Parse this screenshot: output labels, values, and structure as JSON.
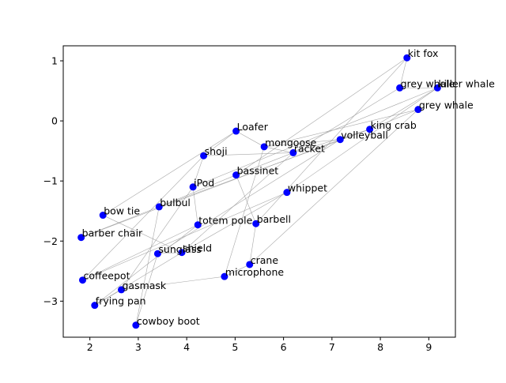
{
  "chart_data": {
    "type": "scatter",
    "title": "",
    "xlabel": "",
    "ylabel": "",
    "xlim": [
      1.45,
      9.55
    ],
    "ylim": [
      -3.6,
      1.25
    ],
    "xticks": [
      2,
      3,
      4,
      5,
      6,
      7,
      8,
      9
    ],
    "yticks": [
      1,
      0,
      -1,
      -2,
      -3
    ],
    "grid": false,
    "point_color": "#0000ff",
    "edge_color": "#999999",
    "points": [
      {
        "label": "kit fox",
        "x": 8.55,
        "y": 1.05
      },
      {
        "label": "grey whale",
        "x": 8.4,
        "y": 0.55
      },
      {
        "label": "killer whale",
        "x": 9.18,
        "y": 0.55
      },
      {
        "label": "grey whale",
        "x": 8.78,
        "y": 0.19
      },
      {
        "label": "king crab",
        "x": 7.78,
        "y": -0.14
      },
      {
        "label": "volleyball",
        "x": 7.17,
        "y": -0.31
      },
      {
        "label": "Loafer",
        "x": 5.02,
        "y": -0.17
      },
      {
        "label": "mongoose",
        "x": 5.6,
        "y": -0.43
      },
      {
        "label": "racket",
        "x": 6.2,
        "y": -0.53
      },
      {
        "label": "shoji",
        "x": 4.35,
        "y": -0.58
      },
      {
        "label": "bassinet",
        "x": 5.02,
        "y": -0.9
      },
      {
        "label": "iPod",
        "x": 4.13,
        "y": -1.1
      },
      {
        "label": "whippet",
        "x": 6.07,
        "y": -1.19
      },
      {
        "label": "bulbul",
        "x": 3.43,
        "y": -1.43
      },
      {
        "label": "bow tie",
        "x": 2.27,
        "y": -1.57
      },
      {
        "label": "totem pole",
        "x": 4.23,
        "y": -1.73
      },
      {
        "label": "barbell",
        "x": 5.43,
        "y": -1.71
      },
      {
        "label": "barber chair",
        "x": 1.82,
        "y": -1.94
      },
      {
        "label": "sunglass",
        "x": 3.4,
        "y": -2.21
      },
      {
        "label": "shield",
        "x": 3.9,
        "y": -2.19
      },
      {
        "label": "crane",
        "x": 5.3,
        "y": -2.39
      },
      {
        "label": "coffeepot",
        "x": 1.85,
        "y": -2.65
      },
      {
        "label": "microphone",
        "x": 4.78,
        "y": -2.59
      },
      {
        "label": "gasmask",
        "x": 2.65,
        "y": -2.81
      },
      {
        "label": "frying pan",
        "x": 2.1,
        "y": -3.07
      },
      {
        "label": "cowboy boot",
        "x": 2.95,
        "y": -3.4
      }
    ],
    "edges": [
      [
        0,
        1
      ],
      [
        0,
        16
      ],
      [
        0,
        10
      ],
      [
        1,
        2
      ],
      [
        1,
        8
      ],
      [
        2,
        4
      ],
      [
        2,
        12
      ],
      [
        2,
        11
      ],
      [
        3,
        4
      ],
      [
        3,
        7
      ],
      [
        3,
        20
      ],
      [
        4,
        5
      ],
      [
        4,
        8
      ],
      [
        4,
        13
      ],
      [
        5,
        7
      ],
      [
        5,
        18
      ],
      [
        6,
        9
      ],
      [
        6,
        14
      ],
      [
        6,
        7
      ],
      [
        7,
        8
      ],
      [
        7,
        22
      ],
      [
        8,
        10
      ],
      [
        8,
        19
      ],
      [
        9,
        11
      ],
      [
        9,
        8
      ],
      [
        10,
        13
      ],
      [
        10,
        16
      ],
      [
        11,
        15
      ],
      [
        11,
        23
      ],
      [
        12,
        21
      ],
      [
        13,
        17
      ],
      [
        13,
        25
      ],
      [
        14,
        19
      ],
      [
        15,
        21
      ],
      [
        16,
        20
      ],
      [
        17,
        5
      ],
      [
        18,
        19
      ],
      [
        19,
        24
      ],
      [
        20,
        22
      ],
      [
        22,
        23
      ],
      [
        23,
        24
      ],
      [
        24,
        15
      ],
      [
        25,
        18
      ],
      [
        21,
        9
      ],
      [
        12,
        19
      ]
    ]
  }
}
